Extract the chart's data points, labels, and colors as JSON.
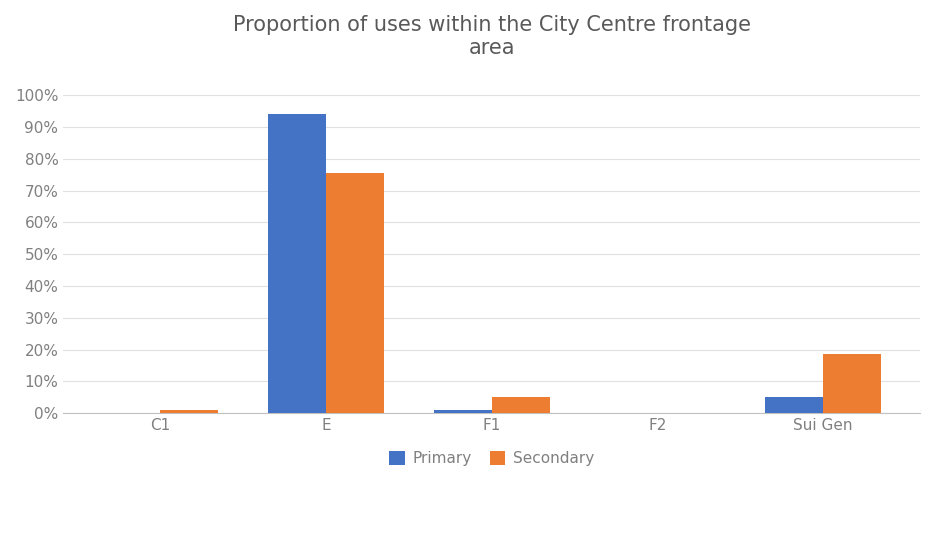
{
  "title": "Proportion of uses within the City Centre frontage\narea",
  "categories": [
    "C1",
    "E",
    "F1",
    "F2",
    "Sui Gen"
  ],
  "primary": [
    0.0,
    0.94,
    0.01,
    0.0,
    0.05
  ],
  "secondary": [
    0.01,
    0.755,
    0.05,
    0.0,
    0.185
  ],
  "primary_color": "#4472C4",
  "secondary_color": "#ED7D31",
  "bar_width": 0.35,
  "ylim": [
    0,
    1.05
  ],
  "yticks": [
    0.0,
    0.1,
    0.2,
    0.3,
    0.4,
    0.5,
    0.6,
    0.7,
    0.8,
    0.9,
    1.0
  ],
  "ytick_labels": [
    "0%",
    "10%",
    "20%",
    "30%",
    "40%",
    "50%",
    "60%",
    "70%",
    "80%",
    "90%",
    "100%"
  ],
  "legend_labels": [
    "Primary",
    "Secondary"
  ],
  "background_color": "#ffffff",
  "grid_color": "#e0e0e0",
  "title_color": "#595959",
  "tick_color": "#808080",
  "title_fontsize": 15,
  "tick_fontsize": 11,
  "legend_fontsize": 11
}
